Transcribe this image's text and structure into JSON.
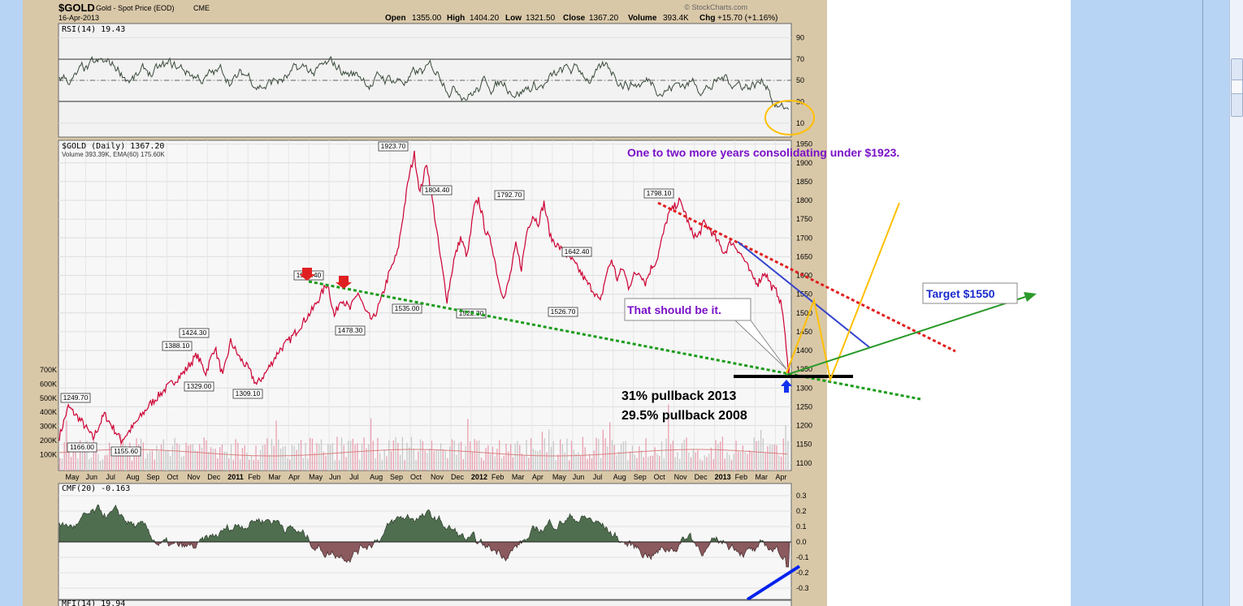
{
  "header": {
    "symbol": "$GOLD",
    "name": "Gold - Spot Price (EOD)",
    "exchange": "CME",
    "date": "16-Apr-2013",
    "open_label": "Open",
    "open": "1355.00",
    "high_label": "High",
    "high": "1404.20",
    "low_label": "Low",
    "low": "1321.50",
    "close_label": "Close",
    "close": "1367.20",
    "volume_label": "Volume",
    "volume": "393.4K",
    "chg_label": "Chg",
    "chg": "+15.70 (+1.16%)",
    "brand": "© StockCharts.com"
  },
  "chart_data": [
    {
      "type": "line",
      "title": "RSI(14) 19.43",
      "y_ticks": [
        90,
        70,
        50,
        30,
        10
      ],
      "ylim": [
        0,
        100
      ],
      "reference_lines": [
        70,
        30
      ],
      "last_value": 19.43
    },
    {
      "type": "line",
      "title": "$GOLD (Daily) 1367.20",
      "subtitle": "Volume 393.39K, EMA(60) 175.60K",
      "y_ticks": [
        1950,
        1900,
        1850,
        1800,
        1750,
        1700,
        1650,
        1600,
        1550,
        1500,
        1450,
        1400,
        1350,
        1300,
        1250,
        1200,
        1150,
        1100
      ],
      "volume_ticks": [
        "700K",
        "600K",
        "500K",
        "400K",
        "300K",
        "200K",
        "100K"
      ],
      "ylim": [
        1080,
        1960
      ],
      "x_ticks": [
        "May",
        "Jun",
        "Jul",
        "Aug",
        "Sep",
        "Oct",
        "Nov",
        "Dec",
        "2011",
        "Feb",
        "Mar",
        "Apr",
        "May",
        "Jun",
        "Jul",
        "Aug",
        "Sep",
        "Oct",
        "Nov",
        "Dec",
        "2012",
        "Feb",
        "Mar",
        "Apr",
        "May",
        "Jun",
        "Jul",
        "Aug",
        "Sep",
        "Oct",
        "Nov",
        "Dec",
        "2013",
        "Feb",
        "Mar",
        "Apr"
      ],
      "price_points": [
        [
          0,
          1170
        ],
        [
          8,
          1250
        ],
        [
          20,
          1210
        ],
        [
          30,
          1166
        ],
        [
          40,
          1230
        ],
        [
          55,
          1160
        ],
        [
          65,
          1195
        ],
        [
          80,
          1255
        ],
        [
          95,
          1300
        ],
        [
          110,
          1340
        ],
        [
          122,
          1388
        ],
        [
          130,
          1340
        ],
        [
          138,
          1410
        ],
        [
          145,
          1330
        ],
        [
          152,
          1424
        ],
        [
          160,
          1380
        ],
        [
          168,
          1350
        ],
        [
          175,
          1309
        ],
        [
          183,
          1340
        ],
        [
          195,
          1400
        ],
        [
          205,
          1430
        ],
        [
          215,
          1470
        ],
        [
          225,
          1510
        ],
        [
          238,
          1580
        ],
        [
          244,
          1490
        ],
        [
          250,
          1540
        ],
        [
          258,
          1510
        ],
        [
          265,
          1555
        ],
        [
          272,
          1500
        ],
        [
          278,
          1480
        ],
        [
          285,
          1530
        ],
        [
          292,
          1600
        ],
        [
          300,
          1660
        ],
        [
          305,
          1760
        ],
        [
          310,
          1860
        ],
        [
          315,
          1923
        ],
        [
          320,
          1820
        ],
        [
          326,
          1900
        ],
        [
          332,
          1780
        ],
        [
          338,
          1650
        ],
        [
          344,
          1535
        ],
        [
          350,
          1640
        ],
        [
          356,
          1700
        ],
        [
          362,
          1650
        ],
        [
          368,
          1780
        ],
        [
          372,
          1804
        ],
        [
          378,
          1720
        ],
        [
          384,
          1680
        ],
        [
          390,
          1580
        ],
        [
          395,
          1540
        ],
        [
          400,
          1600
        ],
        [
          405,
          1680
        ],
        [
          410,
          1620
        ],
        [
          415,
          1720
        ],
        [
          420,
          1760
        ],
        [
          425,
          1740
        ],
        [
          430,
          1793
        ],
        [
          436,
          1700
        ],
        [
          442,
          1680
        ],
        [
          448,
          1660
        ],
        [
          455,
          1640
        ],
        [
          462,
          1610
        ],
        [
          468,
          1580
        ],
        [
          474,
          1560
        ],
        [
          480,
          1527
        ],
        [
          485,
          1600
        ],
        [
          490,
          1642
        ],
        [
          495,
          1590
        ],
        [
          500,
          1620
        ],
        [
          505,
          1570
        ],
        [
          510,
          1600
        ],
        [
          515,
          1610
        ],
        [
          520,
          1580
        ],
        [
          525,
          1620
        ],
        [
          530,
          1640
        ],
        [
          535,
          1700
        ],
        [
          540,
          1760
        ],
        [
          545,
          1780
        ],
        [
          550,
          1798
        ],
        [
          555,
          1770
        ],
        [
          560,
          1720
        ],
        [
          566,
          1700
        ],
        [
          572,
          1740
        ],
        [
          578,
          1720
        ],
        [
          584,
          1690
        ],
        [
          590,
          1660
        ],
        [
          596,
          1690
        ],
        [
          602,
          1670
        ],
        [
          608,
          1640
        ],
        [
          614,
          1600
        ],
        [
          620,
          1580
        ],
        [
          626,
          1610
        ],
        [
          632,
          1570
        ],
        [
          638,
          1550
        ],
        [
          642,
          1500
        ],
        [
          645,
          1400
        ],
        [
          647,
          1340
        ],
        [
          648,
          1367
        ]
      ],
      "labels": [
        {
          "value": "1923.70"
        },
        {
          "value": "1804.40"
        },
        {
          "value": "1792.70"
        },
        {
          "value": "1798.10"
        },
        {
          "value": "1642.40"
        },
        {
          "value": "1535.00"
        },
        {
          "value": "1522.30"
        },
        {
          "value": "1526.70"
        },
        {
          "value": "1577.40"
        },
        {
          "value": "1478.30"
        },
        {
          "value": "1424.30"
        },
        {
          "value": "1388.10"
        },
        {
          "value": "1329.00"
        },
        {
          "value": "1309.10"
        },
        {
          "value": "1249.70"
        },
        {
          "value": "1166.00"
        },
        {
          "value": "1155.60"
        }
      ]
    },
    {
      "type": "area",
      "title": "CMF(20) -0.163",
      "y_ticks": [
        "0.3",
        "0.2",
        "0.1",
        "0.0",
        "-0.1",
        "-0.2",
        "-0.3"
      ],
      "ylim": [
        -0.35,
        0.35
      ],
      "last_value": -0.163
    },
    {
      "type": "line",
      "title": "MFI(14) 19.94",
      "last_value": 19.94
    }
  ],
  "annotations": {
    "consolidating": "One to two more years consolidating under $1923.",
    "should_be_it": "That should be it.",
    "pullback_2013": "31% pullback 2013",
    "pullback_2008": "29.5% pullback 2008",
    "target": "Target $1550"
  },
  "colors": {
    "up": "#000000",
    "down": "#cc0033",
    "green_trend": "#1a9c1a",
    "red_trend": "#e02020",
    "blue_trend": "#3344cc",
    "target_arrow": "#2a9a2a",
    "yellow": "#ffc000",
    "purple_text": "#7a10c8"
  }
}
